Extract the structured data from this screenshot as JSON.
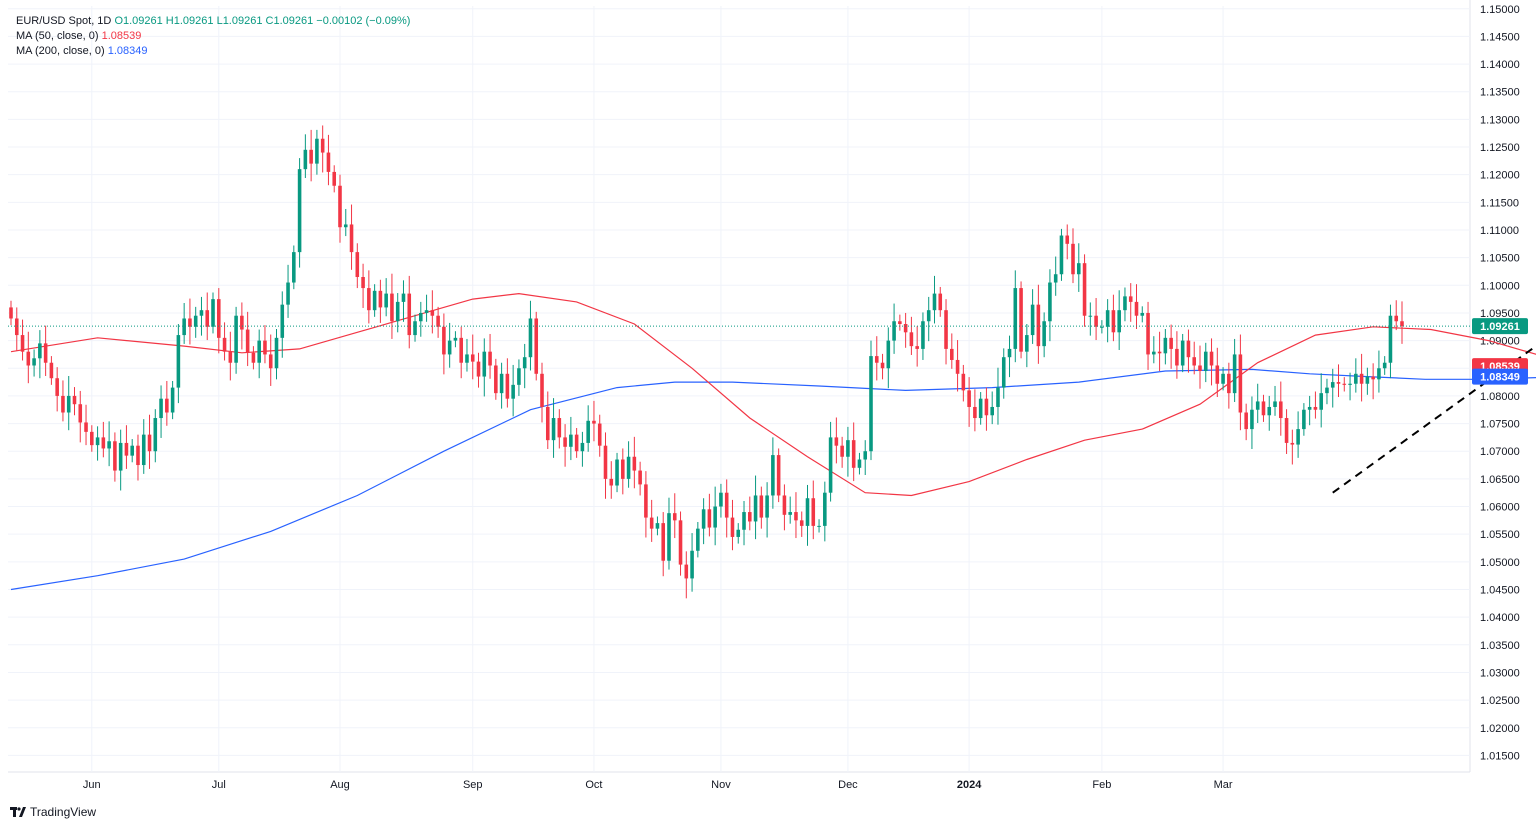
{
  "legend": {
    "symbol": "EUR/USD Spot, 1D",
    "ohlc": "O1.09261 H1.09261 L1.09261 C1.09261",
    "change": "−0.00102 (−0.09%)",
    "ma50_label": "MA (50, close, 0)",
    "ma50_value": "1.08539",
    "ma200_label": "MA (200, close, 0)",
    "ma200_value": "1.08349"
  },
  "branding": {
    "name": "TradingView",
    "icon": "tradingview-logo-icon"
  },
  "colors": {
    "up": "#089981",
    "down": "#f23645",
    "ma50": "#f23645",
    "ma200": "#2962ff",
    "grid": "#f0f3fa",
    "trendline": "#000000"
  },
  "chart_data": {
    "type": "candlestick",
    "title": "EUR/USD Spot, 1D",
    "ylim": [
      1.012,
      1.1505
    ],
    "y_ticks": [
      "1.15000",
      "1.14500",
      "1.14000",
      "1.13500",
      "1.13000",
      "1.12500",
      "1.12000",
      "1.11500",
      "1.11000",
      "1.10500",
      "1.10000",
      "1.09500",
      "1.09000",
      "1.08500",
      "1.08000",
      "1.07500",
      "1.07000",
      "1.06500",
      "1.06000",
      "1.05500",
      "1.05000",
      "1.04500",
      "1.04000",
      "1.03500",
      "1.03000",
      "1.02500",
      "1.02000",
      "1.01500"
    ],
    "x_labels": [
      {
        "label": "Jun",
        "date": "2023-06-01"
      },
      {
        "label": "Jul",
        "date": "2023-07-03"
      },
      {
        "label": "Aug",
        "date": "2023-08-01"
      },
      {
        "label": "Sep",
        "date": "2023-09-01"
      },
      {
        "label": "Oct",
        "date": "2023-10-02"
      },
      {
        "label": "Nov",
        "date": "2023-11-01"
      },
      {
        "label": "Dec",
        "date": "2023-12-01"
      },
      {
        "label": "2024",
        "date": "2024-01-01"
      },
      {
        "label": "Feb",
        "date": "2024-02-01"
      },
      {
        "label": "Mar",
        "date": "2024-03-01"
      }
    ],
    "x_start_date": "2023-05-12",
    "bar_spacing_trading_days": 1,
    "last_price": "1.09261",
    "last_price_color": "#089981",
    "ma50_last": "1.08539",
    "ma200_last": "1.08349",
    "closes": [
      1.094,
      1.091,
      1.088,
      1.0855,
      1.0868,
      1.0895,
      1.086,
      1.0832,
      1.08,
      1.077,
      1.08,
      1.0785,
      1.0752,
      1.0735,
      1.0711,
      1.0725,
      1.0705,
      1.0718,
      1.0665,
      1.0715,
      1.0692,
      1.071,
      1.0675,
      1.073,
      1.07,
      1.076,
      1.0795,
      1.077,
      1.0815,
      1.091,
      1.094,
      1.0925,
      1.0945,
      1.0955,
      1.0925,
      1.0975,
      1.0905,
      1.088,
      1.086,
      1.0945,
      1.092,
      1.0878,
      1.086,
      1.09,
      1.0875,
      1.085,
      1.0905,
      1.0965,
      1.1005,
      1.106,
      1.121,
      1.1245,
      1.122,
      1.1265,
      1.124,
      1.1205,
      1.118,
      1.1105,
      1.111,
      1.106,
      1.1015,
      1.0995,
      1.0955,
      1.099,
      1.096,
      1.0985,
      1.0935,
      1.097,
      1.0985,
      1.091,
      1.0935,
      1.095,
      1.0955,
      1.0945,
      1.0925,
      1.0875,
      1.09,
      1.0905,
      1.086,
      1.0875,
      1.0862,
      1.0835,
      1.088,
      1.0855,
      1.0805,
      1.084,
      1.0795,
      1.082,
      1.085,
      1.087,
      1.094,
      1.084,
      1.078,
      1.072,
      1.076,
      1.0725,
      1.0708,
      1.073,
      1.07,
      1.0715,
      1.0755,
      1.075,
      1.071,
      1.065,
      1.0638,
      1.0685,
      1.065,
      1.069,
      1.0665,
      1.064,
      1.058,
      1.056,
      1.057,
      1.0502,
      1.0588,
      1.0575,
      1.0495,
      1.047,
      1.052,
      1.056,
      1.0595,
      1.0562,
      1.06,
      1.0625,
      1.058,
      1.0545,
      1.0558,
      1.059,
      1.0573,
      1.062,
      1.058,
      1.062,
      1.0693,
      1.062,
      1.0585,
      1.059,
      1.0575,
      1.0565,
      1.0615,
      1.0565,
      1.0565,
      1.0625,
      1.0725,
      1.071,
      1.069,
      1.072,
      1.067,
      1.0685,
      1.07,
      1.0872,
      1.086,
      1.085,
      1.09,
      1.0935,
      1.093,
      1.0915,
      1.089,
      1.0885,
      1.0935,
      1.0955,
      1.0985,
      1.0955,
      1.0885,
      1.0865,
      1.084,
      1.081,
      1.078,
      1.076,
      1.0795,
      1.0765,
      1.078,
      1.0815,
      1.087,
      1.0885,
      1.0995,
      1.088,
      1.091,
      1.0965,
      1.089,
      1.0935,
      1.1005,
      1.102,
      1.109,
      1.1075,
      1.102,
      1.104,
      1.0945,
      1.0945,
      1.0925,
      1.0925,
      1.0955,
      1.0915,
      1.0955,
      1.098,
      1.097,
      1.0945,
      1.095,
      1.0875,
      1.088,
      1.0877,
      1.0905,
      1.0885,
      1.0855,
      1.09,
      1.087,
      1.0855,
      1.0845,
      1.088,
      1.0855,
      1.0822,
      1.084,
      1.0805,
      1.0875,
      1.077,
      1.074,
      1.0775,
      1.079,
      1.0765,
      1.078,
      1.079,
      1.076,
      1.0715,
      1.0712,
      1.074,
      1.0775,
      1.078,
      1.0775,
      1.0805,
      1.0815,
      1.0825,
      1.0822,
      1.082,
      1.0822,
      1.084,
      1.0822,
      1.0835,
      1.083,
      1.085,
      1.086,
      1.0945,
      1.0935,
      1.0926
    ],
    "series": [
      {
        "name": "MA (50, close, 0)",
        "color": "#f23645",
        "last": "1.08539"
      },
      {
        "name": "MA (200, close, 0)",
        "color": "#2962ff",
        "last": "1.08349"
      }
    ],
    "ma50_path": [
      [
        0,
        1.088
      ],
      [
        15,
        1.0905
      ],
      [
        30,
        1.089
      ],
      [
        40,
        1.0878
      ],
      [
        50,
        1.0885
      ],
      [
        60,
        1.0915
      ],
      [
        70,
        1.0945
      ],
      [
        80,
        1.0975
      ],
      [
        88,
        1.0985
      ],
      [
        98,
        1.097
      ],
      [
        108,
        1.093
      ],
      [
        118,
        1.085
      ],
      [
        128,
        1.076
      ],
      [
        138,
        1.069
      ],
      [
        148,
        1.0625
      ],
      [
        156,
        1.062
      ],
      [
        166,
        1.0645
      ],
      [
        176,
        1.0685
      ],
      [
        186,
        1.072
      ],
      [
        196,
        1.074
      ],
      [
        206,
        1.0785
      ],
      [
        216,
        1.086
      ],
      [
        226,
        1.091
      ],
      [
        236,
        1.0925
      ],
      [
        246,
        1.092
      ],
      [
        256,
        1.09
      ],
      [
        266,
        1.087
      ],
      [
        270,
        1.0854
      ]
    ],
    "ma200_path": [
      [
        0,
        1.045
      ],
      [
        15,
        1.0475
      ],
      [
        30,
        1.0505
      ],
      [
        45,
        1.0555
      ],
      [
        60,
        1.062
      ],
      [
        75,
        1.07
      ],
      [
        90,
        1.0775
      ],
      [
        105,
        1.0815
      ],
      [
        115,
        1.0825
      ],
      [
        125,
        1.0825
      ],
      [
        140,
        1.0818
      ],
      [
        155,
        1.081
      ],
      [
        170,
        1.0815
      ],
      [
        185,
        1.0825
      ],
      [
        200,
        1.0845
      ],
      [
        215,
        1.0848
      ],
      [
        225,
        1.084
      ],
      [
        235,
        1.0835
      ],
      [
        245,
        1.083
      ],
      [
        255,
        1.083
      ],
      [
        270,
        1.0835
      ]
    ],
    "trendline": {
      "style": "dashed",
      "points": [
        [
          229,
          1.0625
        ],
        [
          263,
          1.088
        ]
      ]
    },
    "grid": true,
    "current_price_line": "dotted"
  }
}
